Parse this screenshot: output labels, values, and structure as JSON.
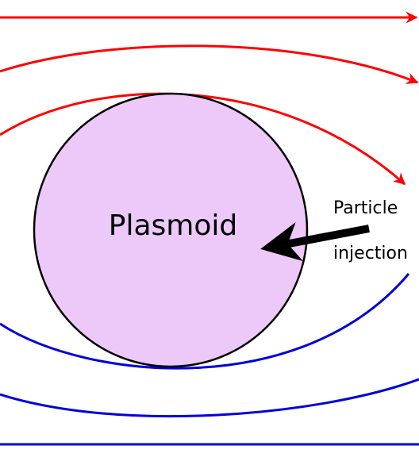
{
  "labels": {
    "plasmoid": "Plasmoid",
    "particle": "Particle",
    "injection": "injection"
  },
  "colors": {
    "plasmoid_fill": "#ecc9f8",
    "outline": "#000000",
    "upper_field": "#ff0000",
    "lower_field": "#0000dd",
    "arrow": "#000000",
    "background": "#ffffff"
  },
  "icons": {
    "injection_arrow": "arrow-left-icon",
    "field_arrowhead": "arrowhead-icon"
  }
}
